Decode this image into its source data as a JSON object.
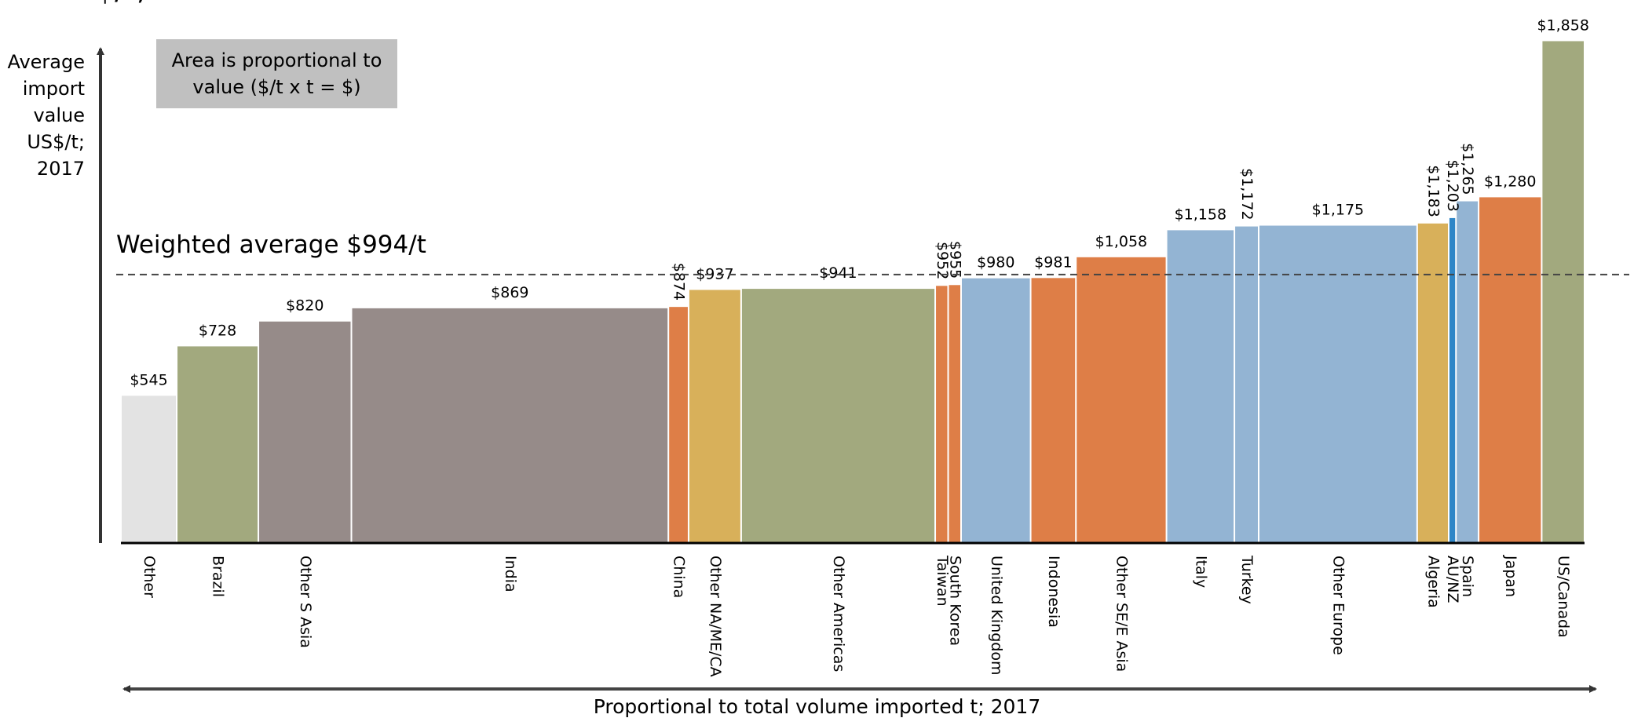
{
  "title_fragment": "US$/t; 2017",
  "chart_data": {
    "type": "bar",
    "variable_width": true,
    "ylabel_lines": [
      "Average",
      "import",
      "value",
      "US$/t;",
      "2017"
    ],
    "xlabel": "Proportional to total volume imported t; 2017",
    "note": "Area is proportional to\nvalue ($/t x t = $)",
    "average_label": "Weighted average $994/t",
    "average_value": 994,
    "ylim": [
      0,
      1900
    ],
    "categories": [
      "Other",
      "Brazil",
      "Other S Asia",
      "India",
      "China",
      "Other NA/ME/CA",
      "Other Americas",
      "Taiwan",
      "South Korea",
      "United Kingdom",
      "Indonesia",
      "Other SE/E Asia",
      "Italy",
      "Turkey",
      "Other Europe",
      "Algeria",
      "AU/NZ",
      "Spain",
      "Japan",
      "US/Canada"
    ],
    "values": [
      545,
      728,
      820,
      869,
      874,
      937,
      941,
      952,
      955,
      980,
      981,
      1058,
      1158,
      1172,
      1175,
      1183,
      1203,
      1265,
      1280,
      1858
    ],
    "value_labels": [
      "$545",
      "$728",
      "$820",
      "$869",
      "$874",
      "$937",
      "$941",
      "$952",
      "$955",
      "$980",
      "$981",
      "$1,058",
      "$1,158",
      "$1,172",
      "$1,175",
      "$1,183",
      "$1,203",
      "$1,265",
      "$1,280",
      "$1,858"
    ],
    "relative_volume": [
      69,
      101,
      115,
      392,
      25,
      65,
      240,
      16,
      16,
      86,
      56,
      112,
      84,
      30,
      196,
      39,
      9,
      28,
      78,
      53
    ],
    "colors": [
      "#e3e3e3",
      "#a2a97e",
      "#968b89",
      "#968b89",
      "#de7e47",
      "#d8b05a",
      "#a2a97e",
      "#de7e47",
      "#de7e47",
      "#93b4d3",
      "#de7e47",
      "#de7e47",
      "#93b4d3",
      "#93b4d3",
      "#93b4d3",
      "#d8b05a",
      "#2f86c7",
      "#93b4d3",
      "#de7e47",
      "#a2a97e"
    ],
    "label_rotated": [
      false,
      false,
      false,
      false,
      true,
      false,
      false,
      true,
      true,
      false,
      false,
      false,
      false,
      true,
      false,
      true,
      true,
      true,
      false,
      false
    ]
  }
}
